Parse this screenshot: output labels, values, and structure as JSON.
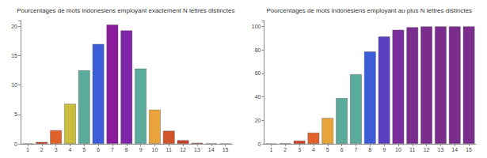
{
  "chart_data": [
    {
      "type": "bar",
      "title": "Pourcentages de mots indonésiens employant exactement N lettres distinctes",
      "categories": [
        "1",
        "2",
        "3",
        "4",
        "5",
        "6",
        "7",
        "8",
        "9",
        "10",
        "11",
        "12",
        "13",
        "14",
        "15"
      ],
      "values": [
        0,
        0.3,
        2.3,
        6.8,
        12.5,
        17,
        20.3,
        19.3,
        12.8,
        5.8,
        2.2,
        0.6,
        0.15,
        0.05,
        0
      ],
      "colors": [
        "#d0402a",
        "#d0402a",
        "#e0622a",
        "#c9bd3c",
        "#5aab9c",
        "#3c5dd8",
        "#8a1b9c",
        "#7e24a8",
        "#5aab9c",
        "#e8a33a",
        "#d0562a",
        "#c8402a",
        "#c8402a",
        "#c8402a",
        "#c8402a"
      ],
      "ylim": [
        0,
        21
      ],
      "yticks": [
        0,
        5,
        10,
        15,
        20
      ],
      "grid": false
    },
    {
      "type": "bar",
      "title": "Pourcentages de mots indonésiens employant au plus N lettres distinctes",
      "categories": [
        "1",
        "2",
        "3",
        "4",
        "5",
        "6",
        "7",
        "8",
        "9",
        "10",
        "11",
        "12",
        "13",
        "14",
        "15"
      ],
      "values": [
        0,
        0.3,
        2.6,
        9.4,
        21.9,
        38.9,
        59.2,
        78.5,
        91.3,
        97.1,
        99.3,
        99.9,
        100,
        100,
        100
      ],
      "colors": [
        "#d0402a",
        "#d0402a",
        "#d0402a",
        "#e0622a",
        "#e8a33a",
        "#5aab9c",
        "#5aab9c",
        "#3c5dd8",
        "#5a3fc0",
        "#7b2d9e",
        "#7b2d8e",
        "#7b2d8e",
        "#7b2d8e",
        "#7b2d8e",
        "#7b2d8e"
      ],
      "ylim": [
        0,
        105
      ],
      "yticks": [
        0,
        20,
        40,
        60,
        80,
        100
      ],
      "grid": false
    }
  ]
}
